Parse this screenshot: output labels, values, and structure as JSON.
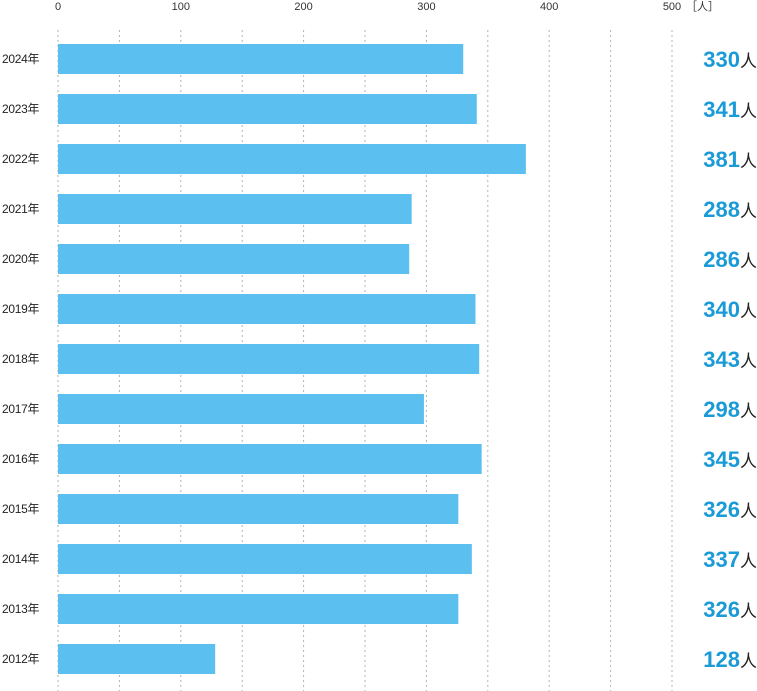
{
  "chart_data": {
    "type": "bar",
    "orientation": "horizontal",
    "categories": [
      "2024年",
      "2023年",
      "2022年",
      "2021年",
      "2020年",
      "2019年",
      "2018年",
      "2017年",
      "2016年",
      "2015年",
      "2014年",
      "2013年",
      "2012年"
    ],
    "values": [
      330,
      341,
      381,
      288,
      286,
      340,
      343,
      298,
      345,
      326,
      337,
      326,
      128
    ],
    "data_labels": [
      "330",
      "341",
      "381",
      "288",
      "286",
      "340",
      "343",
      "298",
      "345",
      "326",
      "337",
      "326",
      "128"
    ],
    "value_unit": "人",
    "axis_unit": "［人］",
    "xlim": [
      0,
      500
    ],
    "xticks": [
      "0",
      "100",
      "200",
      "300",
      "400",
      "500"
    ],
    "grid": "dotted vertical lines every 50",
    "title": "",
    "xlabel": "",
    "ylabel": ""
  },
  "colors": {
    "bar": "#5bc0f0",
    "label": "#1a9ad6",
    "grid": "#b3b3b3"
  }
}
